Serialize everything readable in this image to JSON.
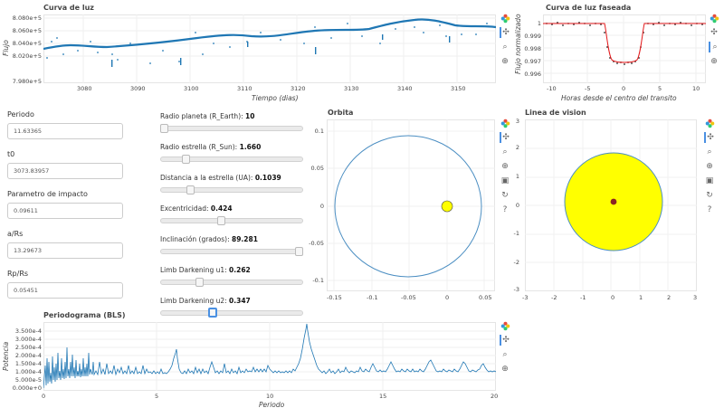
{
  "colors": {
    "accent": "#1f77b4",
    "fit": "#e41a1c",
    "planet": "#ffff00",
    "planet_dot": "#8b2323",
    "orbit": "#4b8ec2"
  },
  "icons": [
    "bokeh-logo-icon",
    "pan-icon",
    "zoom-icon",
    "wheel-zoom-icon",
    "save-icon",
    "reset-icon",
    "help-icon"
  ],
  "light_curve": {
    "title": "Curva de luz",
    "ylabel": "Flujo",
    "xlabel": "Tiempo (dias)",
    "yticks": [
      "8.080e+5",
      "8.060e+5",
      "8.040e+5",
      "8.020e+5",
      "7.980e+5"
    ],
    "xticks": [
      "3080",
      "3090",
      "3100",
      "3110",
      "3120",
      "3130",
      "3140",
      "3150"
    ]
  },
  "phased": {
    "title": "Curva de luz faseada",
    "ylabel": "Flujo normalizado",
    "xlabel": "Horas desde el centro del transito",
    "yticks": [
      "1",
      "0.999",
      "0.998",
      "0.997",
      "0.996"
    ],
    "xticks": [
      "-10",
      "-5",
      "0",
      "5",
      "10"
    ]
  },
  "params": {
    "periodo": {
      "label": "Periodo",
      "value": "11.63365"
    },
    "t0": {
      "label": "t0",
      "value": "3073.83957"
    },
    "impacto": {
      "label": "Parametro de impacto",
      "value": "0.09611"
    },
    "ars": {
      "label": "a/Rs",
      "value": "13.29673"
    },
    "rprs": {
      "label": "Rp/Rs",
      "value": "0.05451"
    }
  },
  "sliders": {
    "radio_planeta": {
      "label": "Radio planeta (R_Earth): ",
      "value": "10",
      "fraction": 0.0
    },
    "radio_estrella": {
      "label": "Radio estrella (R_Sun): ",
      "value": "1.660",
      "fraction": 0.16
    },
    "distancia": {
      "label": "Distancia a la estrella (UA): ",
      "value": "0.1039",
      "fraction": 0.19
    },
    "excentricidad": {
      "label": "Excentricidad: ",
      "value": "0.424",
      "fraction": 0.42
    },
    "inclinacion": {
      "label": "Inclinación (grados): ",
      "value": "89.281",
      "fraction": 0.99
    },
    "limb_u1": {
      "label": "Limb Darkening u1: ",
      "value": "0.262",
      "fraction": 0.26
    },
    "limb_u2": {
      "label": "Limb Darkening u2: ",
      "value": "0.347",
      "fraction": 0.35
    }
  },
  "orbit": {
    "title": "Orbita",
    "yticks": [
      "0.1",
      "0.05",
      "0",
      "-0.05",
      "-0.1"
    ],
    "xticks": [
      "-0.15",
      "-0.1",
      "-0.05",
      "0",
      "0.05"
    ]
  },
  "vision": {
    "title": "Linea de vision",
    "yticks": [
      "3",
      "2",
      "1",
      "0",
      "-1",
      "-2",
      "-3"
    ],
    "xticks": [
      "-3",
      "-2",
      "-1",
      "0",
      "1",
      "2",
      "3"
    ]
  },
  "periodogram": {
    "title": "Periodograma (BLS)",
    "ylabel": "Potencia",
    "xlabel": "Periodo",
    "yticks": [
      "3.500e-4",
      "3.000e-4",
      "2.500e-4",
      "2.000e-4",
      "1.500e-4",
      "1.000e-4",
      "5.000e-5",
      "0.000e+0"
    ],
    "xticks": [
      "0",
      "5",
      "10",
      "15",
      "20"
    ]
  }
}
